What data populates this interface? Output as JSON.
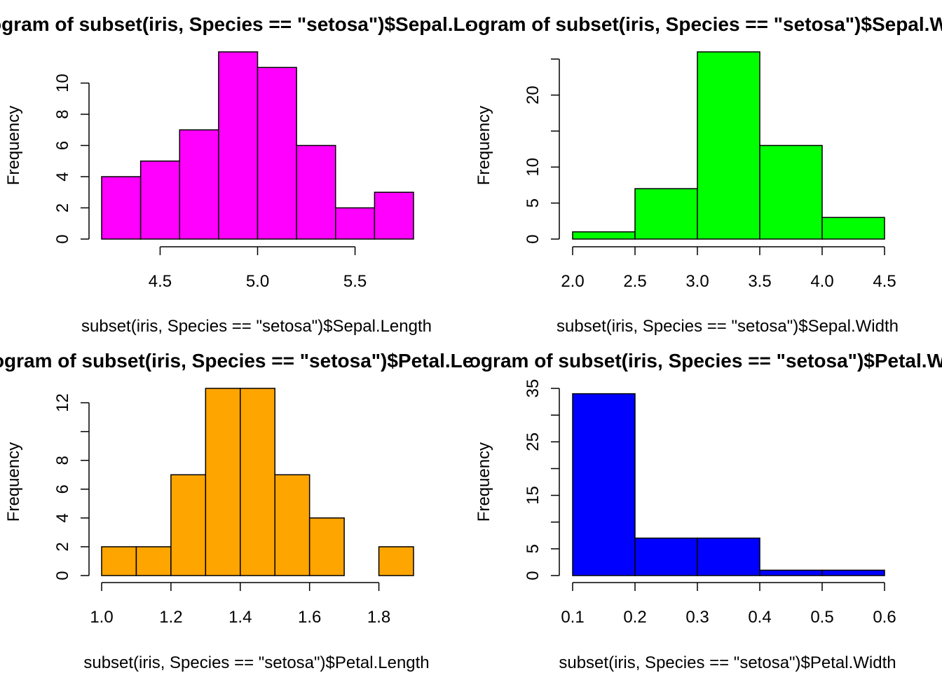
{
  "chart_data": [
    {
      "type": "histogram",
      "title": "Histogram of subset(iris, Species == \"setosa\")$Sepal.Length",
      "xlabel": "subset(iris, Species == \"setosa\")$Sepal.Length",
      "ylabel": "Frequency",
      "color": "#ff00ff",
      "bins": [
        [
          4.2,
          4.4,
          4
        ],
        [
          4.4,
          4.6,
          5
        ],
        [
          4.6,
          4.8,
          7
        ],
        [
          4.8,
          5.0,
          12
        ],
        [
          5.0,
          5.2,
          11
        ],
        [
          5.2,
          5.4,
          6
        ],
        [
          5.4,
          5.6,
          2
        ],
        [
          5.6,
          5.8,
          3
        ]
      ],
      "xticks": [
        "4.5",
        "5.0",
        "5.5"
      ],
      "yticks": [
        "0",
        "2",
        "4",
        "6",
        "8",
        "10"
      ],
      "xlim": [
        4.2,
        5.8
      ],
      "ylim": [
        0,
        12
      ]
    },
    {
      "type": "histogram",
      "title": "Histogram of subset(iris, Species == \"setosa\")$Sepal.Width",
      "xlabel": "subset(iris, Species == \"setosa\")$Sepal.Width",
      "ylabel": "Frequency",
      "color": "#00ff00",
      "bins": [
        [
          2.0,
          2.5,
          1
        ],
        [
          2.5,
          3.0,
          7
        ],
        [
          3.0,
          3.5,
          26
        ],
        [
          3.5,
          4.0,
          13
        ],
        [
          4.0,
          4.5,
          3
        ]
      ],
      "xticks": [
        "2.0",
        "2.5",
        "3.0",
        "3.5",
        "4.0",
        "4.5"
      ],
      "yticks": [
        "0",
        "5",
        "10",
        "20"
      ],
      "yticks_unlabeled": [
        15,
        25
      ],
      "xlim": [
        2.0,
        4.5
      ],
      "ylim": [
        0,
        26
      ]
    },
    {
      "type": "histogram",
      "title": "Histogram of subset(iris, Species == \"setosa\")$Petal.Length",
      "xlabel": "subset(iris, Species == \"setosa\")$Petal.Length",
      "ylabel": "Frequency",
      "color": "#ffa500",
      "bins": [
        [
          1.0,
          1.1,
          2
        ],
        [
          1.1,
          1.2,
          2
        ],
        [
          1.2,
          1.3,
          7
        ],
        [
          1.3,
          1.4,
          13
        ],
        [
          1.4,
          1.5,
          13
        ],
        [
          1.5,
          1.6,
          7
        ],
        [
          1.6,
          1.7,
          4
        ],
        [
          1.7,
          1.8,
          0
        ],
        [
          1.8,
          1.9,
          2
        ]
      ],
      "xticks": [
        "1.0",
        "1.2",
        "1.4",
        "1.6",
        "1.8"
      ],
      "yticks": [
        "0",
        "2",
        "4",
        "6",
        "8",
        "12"
      ],
      "yticks_unlabeled": [
        10
      ],
      "xlim": [
        1.0,
        1.9
      ],
      "ylim": [
        0,
        13
      ]
    },
    {
      "type": "histogram",
      "title": "Histogram of subset(iris, Species == \"setosa\")$Petal.Width",
      "xlabel": "subset(iris, Species == \"setosa\")$Petal.Width",
      "ylabel": "Frequency",
      "color": "#0000ff",
      "bins": [
        [
          0.1,
          0.2,
          34
        ],
        [
          0.2,
          0.3,
          7
        ],
        [
          0.3,
          0.4,
          7
        ],
        [
          0.4,
          0.5,
          1
        ],
        [
          0.5,
          0.6,
          1
        ]
      ],
      "xticks": [
        "0.1",
        "0.2",
        "0.3",
        "0.4",
        "0.5",
        "0.6"
      ],
      "yticks": [
        "0",
        "5",
        "15",
        "25",
        "35"
      ],
      "yticks_unlabeled": [
        10,
        20,
        30
      ],
      "xlim": [
        0.1,
        0.6
      ],
      "ylim": [
        0,
        35
      ]
    }
  ]
}
